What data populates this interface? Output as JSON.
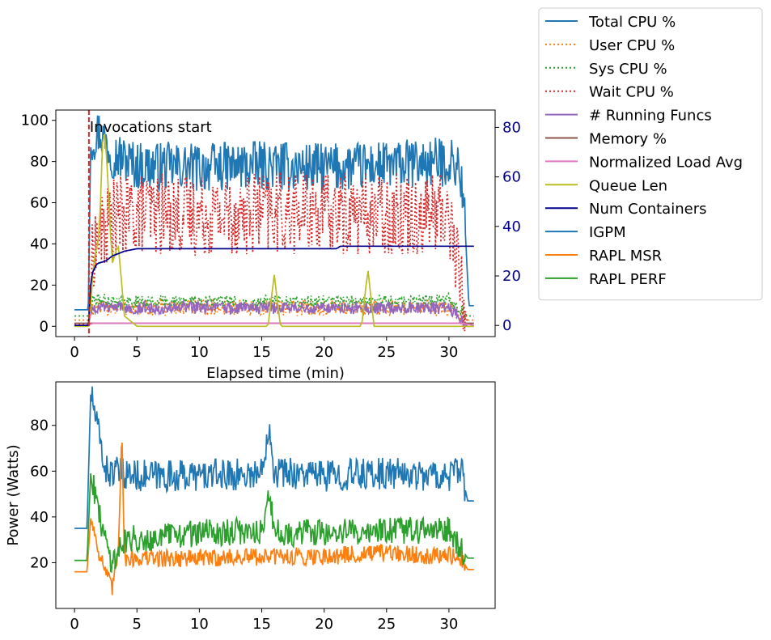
{
  "chart_data": [
    {
      "type": "line",
      "xlabel": "Elapsed time (min)",
      "ylabel": "",
      "xlim": [
        -1.5,
        33.7
      ],
      "ylim": [
        -5,
        105
      ],
      "xticks": [
        0,
        5,
        10,
        15,
        20,
        25,
        30
      ],
      "yticks": [
        0,
        20,
        40,
        60,
        80,
        100
      ],
      "y2lim": [
        -4.5,
        87
      ],
      "y2ticks": [
        0,
        20,
        40,
        60,
        80
      ],
      "y2_color": "#00008b",
      "annotation": {
        "text": "Invocations start",
        "x": 1.15,
        "color": "#d62728"
      },
      "legend_position": "outside top-right",
      "series": [
        {
          "name": "Total CPU %",
          "color": "#1f77b4",
          "style": "solid",
          "axis": "left",
          "points": [
            [
              0,
              8
            ],
            [
              1.1,
              8
            ],
            [
              1.3,
              90
            ],
            [
              2,
              95
            ],
            [
              3,
              84
            ],
            [
              5,
              78
            ],
            [
              10,
              77
            ],
            [
              15,
              78
            ],
            [
              20,
              77
            ],
            [
              25,
              78
            ],
            [
              30,
              80
            ],
            [
              30.8,
              78
            ],
            [
              31.2,
              60
            ],
            [
              31.6,
              10
            ],
            [
              32,
              10
            ]
          ]
        },
        {
          "name": "User CPU %",
          "color": "#ff7f0e",
          "style": "dotted",
          "axis": "left",
          "points": [
            [
              0,
              3
            ],
            [
              1.1,
              3
            ],
            [
              1.4,
              9
            ],
            [
              5,
              9
            ],
            [
              10,
              9
            ],
            [
              15,
              9
            ],
            [
              20,
              9
            ],
            [
              25,
              9
            ],
            [
              30,
              9
            ],
            [
              31.5,
              3
            ],
            [
              32,
              3
            ]
          ]
        },
        {
          "name": "Sys CPU %",
          "color": "#2ca02c",
          "style": "dotted",
          "axis": "left",
          "points": [
            [
              0,
              5
            ],
            [
              1.1,
              5
            ],
            [
              1.4,
              13
            ],
            [
              5,
              12
            ],
            [
              10,
              12
            ],
            [
              15,
              12
            ],
            [
              20,
              12
            ],
            [
              25,
              12
            ],
            [
              30,
              13
            ],
            [
              31.5,
              5
            ],
            [
              32,
              5
            ]
          ]
        },
        {
          "name": "Wait CPU %",
          "color": "#d62728",
          "style": "dotted",
          "axis": "left",
          "points": [
            [
              0,
              1
            ],
            [
              1.1,
              1
            ],
            [
              1.5,
              38
            ],
            [
              3,
              52
            ],
            [
              5,
              55
            ],
            [
              10,
              54
            ],
            [
              15,
              55
            ],
            [
              20,
              55
            ],
            [
              25,
              55
            ],
            [
              30,
              55
            ],
            [
              31.5,
              1
            ],
            [
              32,
              1
            ]
          ]
        },
        {
          "name": "# Running Funcs",
          "color": "#9467bd",
          "style": "solid",
          "axis": "left",
          "points": [
            [
              0,
              0
            ],
            [
              1.1,
              0
            ],
            [
              1.4,
              9
            ],
            [
              5,
              9
            ],
            [
              10,
              9
            ],
            [
              15,
              9
            ],
            [
              20,
              9
            ],
            [
              25,
              9
            ],
            [
              30,
              9
            ],
            [
              31.5,
              0
            ],
            [
              32,
              0
            ]
          ]
        },
        {
          "name": "Memory %",
          "color": "#8c564b",
          "style": "solid",
          "axis": "left",
          "points": [
            [
              0,
              1.5
            ],
            [
              32,
              1.5
            ]
          ]
        },
        {
          "name": "Normalized Load Avg",
          "color": "#e377c2",
          "style": "solid",
          "axis": "left",
          "points": [
            [
              0,
              0.5
            ],
            [
              1.1,
              0.5
            ],
            [
              1.5,
              1.5
            ],
            [
              31,
              1.5
            ],
            [
              32,
              0.5
            ]
          ]
        },
        {
          "name": "Queue Len",
          "color": "#bcbd22",
          "style": "solid",
          "axis": "left",
          "points": [
            [
              0,
              0
            ],
            [
              1.2,
              0
            ],
            [
              1.5,
              30
            ],
            [
              2,
              45
            ],
            [
              2.3,
              100
            ],
            [
              2.6,
              80
            ],
            [
              3,
              30
            ],
            [
              3.5,
              40
            ],
            [
              4,
              5
            ],
            [
              5,
              0
            ],
            [
              15.5,
              0
            ],
            [
              16,
              25
            ],
            [
              16.5,
              0
            ],
            [
              23,
              0
            ],
            [
              23.5,
              28
            ],
            [
              24,
              0
            ],
            [
              32,
              0
            ]
          ]
        },
        {
          "name": "Num Containers",
          "color": "#00008b",
          "style": "solid",
          "axis": "right",
          "points": [
            [
              0,
              0
            ],
            [
              1.2,
              0
            ],
            [
              1.3,
              20
            ],
            [
              1.8,
              25
            ],
            [
              2.5,
              26
            ],
            [
              3,
              28
            ],
            [
              4,
              30
            ],
            [
              5,
              31
            ],
            [
              21,
              31
            ],
            [
              21.3,
              32
            ],
            [
              32,
              32
            ]
          ]
        },
        {
          "name": "IGPM",
          "color": "#1f77b4",
          "style": "solid",
          "axis": "hidden",
          "points": []
        },
        {
          "name": "RAPL MSR",
          "color": "#ff7f0e",
          "style": "solid",
          "axis": "hidden",
          "points": []
        },
        {
          "name": "RAPL PERF",
          "color": "#2ca02c",
          "style": "solid",
          "axis": "hidden",
          "points": []
        }
      ]
    },
    {
      "type": "line",
      "xlabel": "",
      "ylabel": "Power (Watts)",
      "xlim": [
        -1.5,
        33.7
      ],
      "ylim": [
        0,
        99
      ],
      "xticks": [
        0,
        5,
        10,
        15,
        20,
        25,
        30
      ],
      "yticks": [
        20,
        40,
        60,
        80
      ],
      "series": [
        {
          "name": "IGPM",
          "color": "#1f77b4",
          "style": "solid",
          "points": [
            [
              0,
              35
            ],
            [
              1,
              35
            ],
            [
              1.3,
              95
            ],
            [
              1.8,
              80
            ],
            [
              2.5,
              60
            ],
            [
              5,
              58
            ],
            [
              10,
              58
            ],
            [
              15,
              59
            ],
            [
              15.6,
              82
            ],
            [
              16,
              60
            ],
            [
              20,
              58
            ],
            [
              25,
              59
            ],
            [
              30,
              58
            ],
            [
              31,
              60
            ],
            [
              31.5,
              47
            ],
            [
              32,
              47
            ]
          ]
        },
        {
          "name": "RAPL MSR",
          "color": "#ff7f0e",
          "style": "solid",
          "points": [
            [
              0,
              16
            ],
            [
              1,
              16
            ],
            [
              1.3,
              40
            ],
            [
              2,
              24
            ],
            [
              3,
              8
            ],
            [
              3.5,
              25
            ],
            [
              3.8,
              80
            ],
            [
              4,
              22
            ],
            [
              10,
              22
            ],
            [
              20,
              23
            ],
            [
              25,
              24
            ],
            [
              30,
              23
            ],
            [
              31,
              22
            ],
            [
              31.5,
              17
            ],
            [
              32,
              17
            ]
          ]
        },
        {
          "name": "RAPL PERF",
          "color": "#2ca02c",
          "style": "solid",
          "points": [
            [
              0,
              21
            ],
            [
              1,
              21
            ],
            [
              1.3,
              60
            ],
            [
              2,
              40
            ],
            [
              3,
              20
            ],
            [
              4,
              30
            ],
            [
              10,
              33
            ],
            [
              15,
              34
            ],
            [
              15.6,
              50
            ],
            [
              16,
              33
            ],
            [
              20,
              33
            ],
            [
              25,
              34
            ],
            [
              30,
              34
            ],
            [
              31.5,
              22
            ],
            [
              32,
              22
            ]
          ]
        }
      ]
    }
  ]
}
